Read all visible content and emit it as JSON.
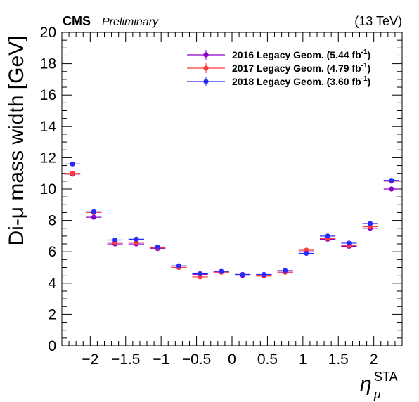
{
  "header": {
    "experiment": "CMS",
    "status": "Preliminary",
    "energy": "(13 TeV)"
  },
  "chart_data": {
    "type": "scatter",
    "title": "",
    "xlabel": "η_μ^STA",
    "ylabel": "Di-μ mass width [GeV]",
    "xlim": [
      -2.4,
      2.4
    ],
    "ylim": [
      0,
      20
    ],
    "x_ticks": [
      "−2",
      "−1.5",
      "−1",
      "−0.5",
      "0",
      "0.5",
      "1",
      "1.5",
      "2"
    ],
    "y_ticks": [
      "0",
      "2",
      "4",
      "6",
      "8",
      "10",
      "12",
      "14",
      "16",
      "18",
      "20"
    ],
    "grid": false,
    "legend_position": "top-right",
    "bin_edges": [
      -2.4,
      -2.1,
      -1.8,
      -1.5,
      -1.2,
      -0.9,
      -0.6,
      -0.3,
      0.0,
      0.3,
      0.6,
      0.9,
      1.2,
      1.5,
      1.8,
      2.1,
      2.4
    ],
    "x": [
      -2.25,
      -1.95,
      -1.65,
      -1.35,
      -1.05,
      -0.75,
      -0.45,
      -0.15,
      0.15,
      0.45,
      0.75,
      1.05,
      1.35,
      1.65,
      1.95,
      2.25
    ],
    "series": [
      {
        "name": "2016 Legacy Geom. (5.44 fb",
        "color": "#8a00c8",
        "values": [
          10.95,
          8.2,
          6.5,
          6.5,
          6.2,
          5.0,
          4.55,
          4.7,
          4.5,
          4.5,
          4.7,
          6.0,
          6.8,
          6.35,
          7.5,
          10.0
        ]
      },
      {
        "name": "2017 Legacy Geom. (4.79 fb",
        "color": "#ff3b3b",
        "values": [
          11.0,
          8.5,
          6.6,
          6.6,
          6.25,
          5.0,
          4.4,
          4.7,
          4.55,
          4.45,
          4.7,
          6.1,
          6.85,
          6.4,
          7.6,
          10.5
        ]
      },
      {
        "name": "2018 Legacy Geom. (3.60 fb",
        "color": "#2a2aff",
        "values": [
          11.6,
          8.55,
          6.75,
          6.8,
          6.3,
          5.1,
          4.6,
          4.75,
          4.55,
          4.55,
          4.8,
          5.9,
          7.0,
          6.55,
          7.8,
          10.55
        ]
      }
    ],
    "legend_superscript": "-1",
    "legend_close": ")"
  }
}
